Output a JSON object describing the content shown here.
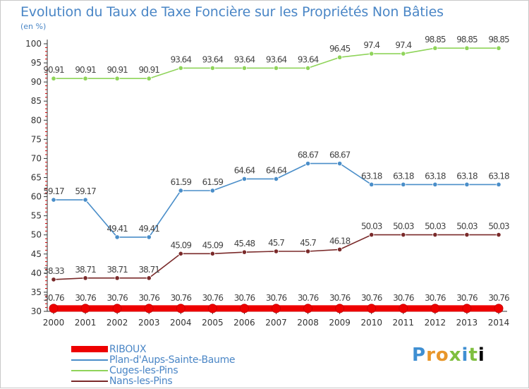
{
  "chart_data": {
    "type": "line",
    "title": "Evolution du Taux de Taxe Foncière sur les Propriétés Non Bâties",
    "ylabel": "(en %)",
    "xlabel": "",
    "ylim": [
      30,
      100
    ],
    "yticks": [
      30,
      35,
      40,
      45,
      50,
      55,
      60,
      65,
      70,
      75,
      80,
      85,
      90,
      95,
      100
    ],
    "grid": false,
    "categories": [
      "2000",
      "2001",
      "2002",
      "2003",
      "2004",
      "2005",
      "2006",
      "2007",
      "2008",
      "2009",
      "2010",
      "2011",
      "2012",
      "2013",
      "2014"
    ],
    "series": [
      {
        "name": "RIBOUX",
        "color": "#ee0000",
        "thick": true,
        "values": [
          30.76,
          30.76,
          30.76,
          30.76,
          30.76,
          30.76,
          30.76,
          30.76,
          30.76,
          30.76,
          30.76,
          30.76,
          30.76,
          30.76,
          30.76
        ],
        "labels": [
          "30.76",
          "30.76",
          "30.76",
          "30.76",
          "30.76",
          "30.76",
          "30.76",
          "30.76",
          "30.76",
          "30.76",
          "30.76",
          "30.76",
          "30.76",
          "30.76",
          "30.76"
        ]
      },
      {
        "name": "Plan-d'Aups-Sainte-Baume",
        "color": "#4a8ec9",
        "values": [
          59.17,
          59.17,
          49.41,
          49.41,
          61.59,
          61.59,
          64.64,
          64.64,
          68.67,
          68.67,
          63.18,
          63.18,
          63.18,
          63.18,
          63.18
        ],
        "labels": [
          "59.17",
          "59.17",
          "49.41",
          "49.41",
          "61.59",
          "61.59",
          "64.64",
          "64.64",
          "68.67",
          "68.67",
          "63.18",
          "63.18",
          "63.18",
          "63.18",
          "63.18"
        ]
      },
      {
        "name": "Cuges-les-Pins",
        "color": "#8fd45a",
        "values": [
          90.91,
          90.91,
          90.91,
          90.91,
          93.64,
          93.64,
          93.64,
          93.64,
          93.64,
          96.45,
          97.4,
          97.4,
          98.85,
          98.85,
          98.85
        ],
        "labels": [
          "90.91",
          "90.91",
          "90.91",
          "90.91",
          "93.64",
          "93.64",
          "93.64",
          "93.64",
          "93.64",
          "96.45",
          "97.4",
          "97.4",
          "98.85",
          "98.85",
          "98.85"
        ]
      },
      {
        "name": "Nans-les-Pins",
        "color": "#7a2a2a",
        "values": [
          38.33,
          38.71,
          38.71,
          38.71,
          45.09,
          45.09,
          45.48,
          45.7,
          45.7,
          46.18,
          50.03,
          50.03,
          50.03,
          50.03,
          50.03
        ],
        "labels": [
          "38.33",
          "38.71",
          "38.71",
          "38.71",
          "45.09",
          "45.09",
          "45.48",
          "45.7",
          "45.7",
          "46.18",
          "50.03",
          "50.03",
          "50.03",
          "50.03",
          "50.03"
        ]
      }
    ]
  },
  "legend": {
    "items": [
      {
        "label": "RIBOUX",
        "color": "#ee0000"
      },
      {
        "label": "Plan-d'Aups-Sainte-Baume",
        "color": "#4a8ec9"
      },
      {
        "label": "Cuges-les-Pins",
        "color": "#8fd45a"
      },
      {
        "label": "Nans-les-Pins",
        "color": "#7a2a2a"
      }
    ]
  },
  "brand": {
    "letters": [
      "P",
      "r",
      "o",
      "x",
      "i",
      "t",
      "i"
    ]
  }
}
